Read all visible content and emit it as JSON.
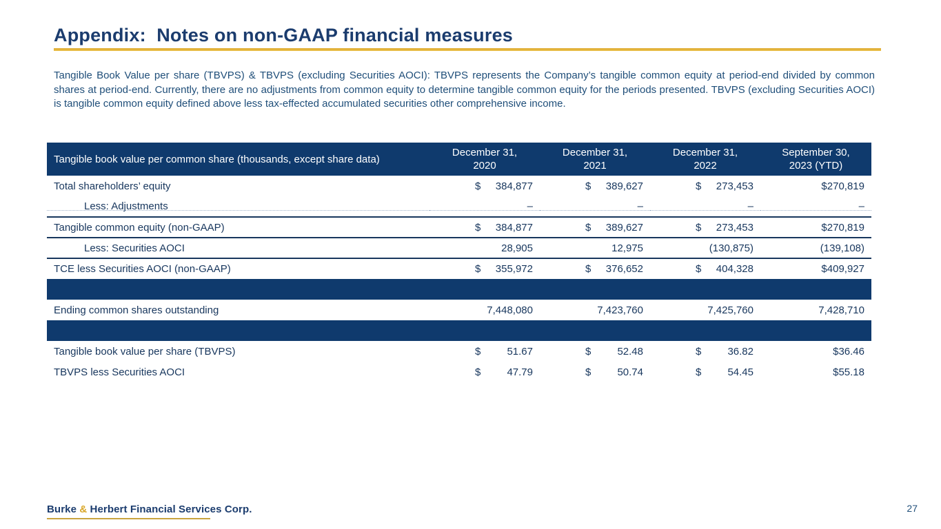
{
  "slide": {
    "title": "Appendix:  Notes on non-GAAP financial measures",
    "page_number": "27"
  },
  "paragraph": "Tangible Book Value per share (TBVPS) & TBVPS (excluding Securities AOCI): TBVPS represents the Company’s tangible common equity at period-end divided by common shares at period-end. Currently, there are no adjustments from common equity to determine tangible common equity for the periods presented. TBVPS (excluding Securities AOCI) is tangible common equity defined above less tax-effected accumulated securities other comprehensive income.",
  "table": {
    "corner_label": "Tangible book value per common share (thousands, except share data)",
    "columns": [
      {
        "line1": "December 31,",
        "line2": "2020"
      },
      {
        "line1": "December 31,",
        "line2": "2021"
      },
      {
        "line1": "December 31,",
        "line2": "2022"
      },
      {
        "line1": "September 30,",
        "line2": "2023 (YTD)"
      }
    ],
    "rows": [
      {
        "type": "data",
        "label": "Total shareholders’ equity",
        "indent": false,
        "values": [
          "$ 384,877",
          "$ 389,627",
          "$ 273,453",
          "$270,819"
        ],
        "underline": "none",
        "topline": false
      },
      {
        "type": "data",
        "label": "Less: Adjustments",
        "indent": true,
        "values": [
          "–",
          "–",
          "–",
          "–"
        ],
        "underline": "dotted",
        "topline": false
      },
      {
        "type": "data",
        "label": "Tangible common equity (non-GAAP)",
        "indent": false,
        "values": [
          "$ 384,877",
          "$ 389,627",
          "$ 273,453",
          "$270,819"
        ],
        "underline": "solid",
        "topline": true
      },
      {
        "type": "data",
        "label": "Less: Securities AOCI",
        "indent": true,
        "values": [
          "28,905",
          "12,975",
          "(130,875)",
          "(139,108)"
        ],
        "underline": "solid",
        "topline": false
      },
      {
        "type": "data",
        "label": "TCE less Securities AOCI (non-GAAP)",
        "indent": false,
        "values": [
          "$ 355,972",
          "$ 376,652",
          "$ 404,328",
          "$409,927"
        ],
        "underline": "none",
        "topline": false
      },
      {
        "type": "bar"
      },
      {
        "type": "data",
        "label": "Ending common shares outstanding",
        "indent": false,
        "values": [
          "7,448,080",
          "7,423,760",
          "7,425,760",
          "7,428,710"
        ],
        "underline": "none",
        "topline": false
      },
      {
        "type": "bar"
      },
      {
        "type": "data",
        "label": "Tangible book value per share (TBVPS)",
        "indent": false,
        "values": [
          "$ 51.67",
          "$ 52.48",
          "$ 36.82",
          "$36.46"
        ],
        "underline": "none",
        "topline": false
      },
      {
        "type": "data",
        "label": "TBVPS less Securities AOCI",
        "indent": false,
        "values": [
          "$ 47.79",
          "$ 50.74",
          "$ 54.45",
          "$55.18"
        ],
        "underline": "none",
        "topline": false
      }
    ]
  },
  "footer": {
    "logo": {
      "word1": "Burke",
      "amp": "&",
      "word2": "Herbert Financial Services Corp."
    }
  },
  "colors": {
    "navy_bar": "#0f3a6d",
    "table_text": "#17365d",
    "paragraph_text": "#1f4e79",
    "title_text": "#1b3c6e",
    "gold": "#dda626"
  }
}
